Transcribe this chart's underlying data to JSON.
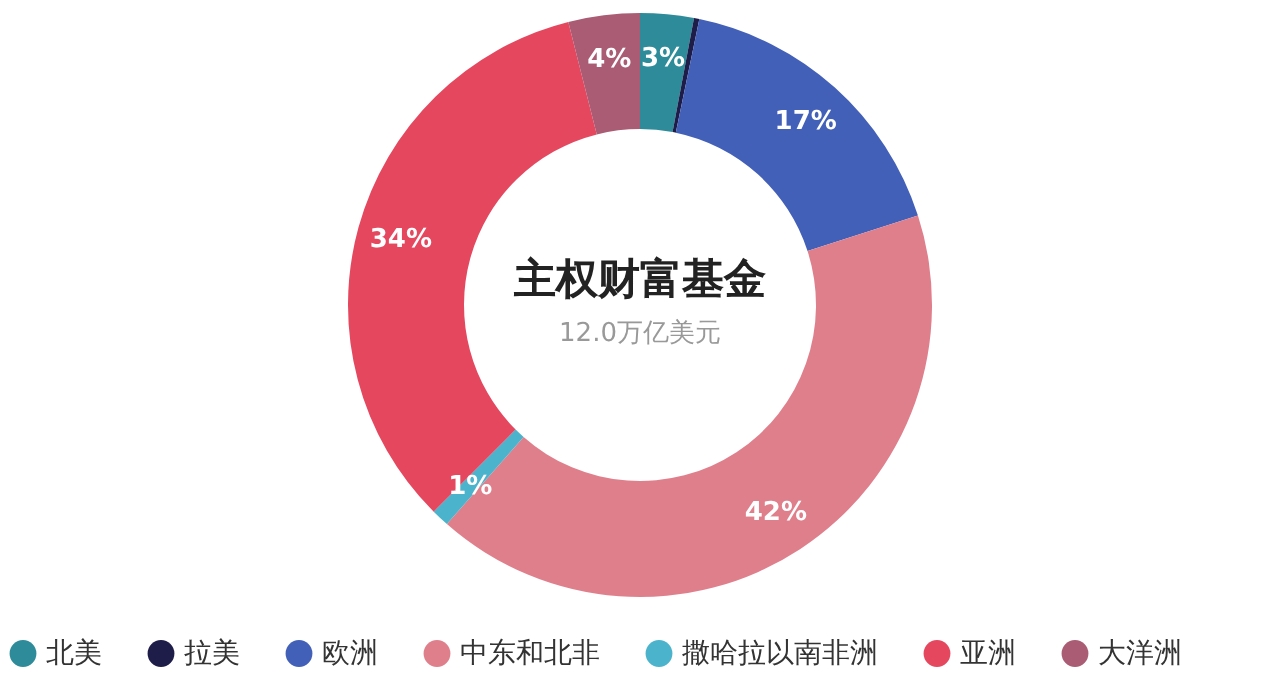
{
  "chart_data": {
    "type": "donut",
    "title": "主权财富基金",
    "subtitle": "12.0万亿美元",
    "categories": [
      "北美",
      "拉美",
      "欧洲",
      "中东和北非",
      "撒哈拉以南非洲",
      "亚洲",
      "大洋洲"
    ],
    "values": [
      3,
      0.3,
      17,
      42,
      1,
      34,
      4
    ],
    "value_labels": [
      "3%",
      null,
      "17%",
      "42%",
      "1%",
      "34%",
      "4%"
    ],
    "colors": [
      "#2e8b9a",
      "#1e1c48",
      "#4360b8",
      "#e07f8c",
      "#4bb4cc",
      "#e5475f",
      "#a95c74"
    ],
    "legend": "bottom"
  }
}
